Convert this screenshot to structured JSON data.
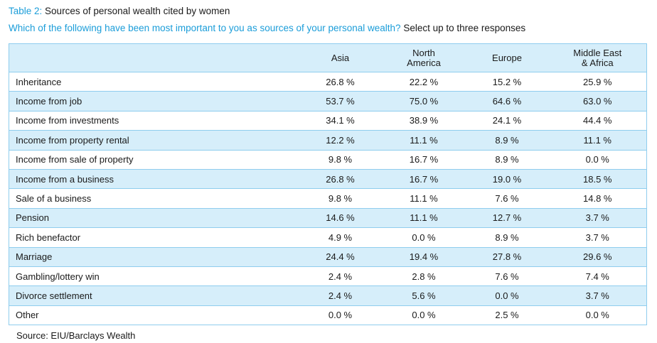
{
  "title": {
    "number": "Table 2:",
    "text": " Sources of personal wealth cited by women"
  },
  "subtitle": {
    "question": "Which of the following have been most important to you as sources of your personal wealth?",
    "instruction": " Select up to three responses"
  },
  "table": {
    "columns": [
      "",
      "Asia",
      "North\nAmerica",
      "Europe",
      "Middle East\n& Africa"
    ],
    "rows": [
      {
        "label": "Inheritance",
        "values": [
          "26.8 %",
          "22.2 %",
          "15.2 %",
          "25.9 %"
        ]
      },
      {
        "label": "Income from job",
        "values": [
          "53.7 %",
          "75.0 %",
          "64.6 %",
          "63.0 %"
        ]
      },
      {
        "label": "Income from investments",
        "values": [
          "34.1 %",
          "38.9 %",
          "24.1 %",
          "44.4 %"
        ]
      },
      {
        "label": "Income from property rental",
        "values": [
          "12.2 %",
          "11.1 %",
          "8.9 %",
          "11.1 %"
        ]
      },
      {
        "label": "Income from sale of property",
        "values": [
          "9.8 %",
          "16.7 %",
          "8.9 %",
          "0.0 %"
        ]
      },
      {
        "label": "Income from a business",
        "values": [
          "26.8 %",
          "16.7 %",
          "19.0 %",
          "18.5 %"
        ]
      },
      {
        "label": "Sale of a business",
        "values": [
          "9.8 %",
          "11.1 %",
          "7.6 %",
          "14.8 %"
        ]
      },
      {
        "label": "Pension",
        "values": [
          "14.6 %",
          "11.1 %",
          "12.7 %",
          "3.7 %"
        ]
      },
      {
        "label": "Rich benefactor",
        "values": [
          "4.9 %",
          "0.0 %",
          "8.9 %",
          "3.7 %"
        ]
      },
      {
        "label": "Marriage",
        "values": [
          "24.4 %",
          "19.4 %",
          "27.8 %",
          "29.6 %"
        ]
      },
      {
        "label": "Gambling/lottery win",
        "values": [
          "2.4 %",
          "2.8 %",
          "7.6 %",
          "7.4 %"
        ]
      },
      {
        "label": "Divorce settlement",
        "values": [
          "2.4 %",
          "5.6 %",
          "0.0 %",
          "3.7 %"
        ]
      },
      {
        "label": "Other",
        "values": [
          "0.0 %",
          "0.0 %",
          "2.5 %",
          "0.0 %"
        ]
      }
    ]
  },
  "source": "Source: EIU/Barclays Wealth",
  "colors": {
    "accent": "#1b9dd9",
    "band": "#d6eefa",
    "border": "#8fcdee"
  }
}
